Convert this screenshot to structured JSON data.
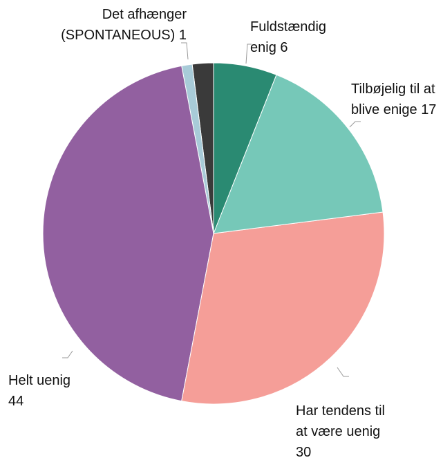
{
  "chart_data": {
    "type": "pie",
    "categories": [
      "Fuldstændig enig",
      "Tilbøjelig til at blive enige",
      "Har tendens til at være uenig",
      "Helt uenig",
      "Det afhænger (SPONTANEOUS)",
      null
    ],
    "values": [
      6,
      17,
      30,
      44,
      1,
      2
    ],
    "colors": [
      "#2a8a72",
      "#76c8b8",
      "#f59e98",
      "#9260a0",
      "#a8cbd8",
      "#3a3a3a"
    ]
  }
}
